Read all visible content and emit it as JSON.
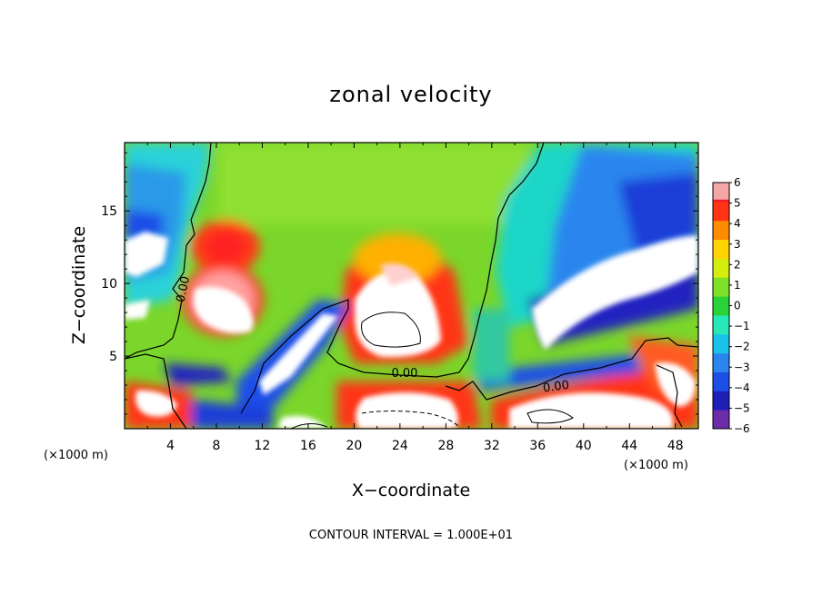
{
  "chart_data": {
    "type": "heatmap",
    "title": "zonal velocity",
    "xlabel": "X−coordinate",
    "ylabel": "Z−coordinate",
    "x_unit_left": "(×1000 m)",
    "x_unit_right": "(×1000 m)",
    "footer": "CONTOUR INTERVAL = 1.000E+01",
    "xlim": [
      0,
      50
    ],
    "ylim": [
      0,
      19.7
    ],
    "x_ticks": [
      4,
      8,
      12,
      16,
      20,
      24,
      28,
      32,
      36,
      40,
      44,
      48
    ],
    "y_ticks": [
      5,
      10,
      15
    ],
    "colorbar": {
      "min": -6,
      "max": 6,
      "ticks": [
        6,
        5,
        4,
        3,
        2,
        1,
        0,
        -1,
        -2,
        -3,
        -4,
        -5,
        -6
      ],
      "colors": [
        "#6a2ca8",
        "#2020b8",
        "#1e4ee8",
        "#2a86ee",
        "#18c2e8",
        "#28e8b8",
        "#2ad23a",
        "#7de026",
        "#d4ee10",
        "#ffd400",
        "#ff8c00",
        "#ff3414",
        "#ee1c24"
      ],
      "top_color": "#f4a6a6"
    },
    "contour_labels": [
      {
        "text": "0.00",
        "x": 5.1,
        "y": 9.6
      },
      {
        "text": "0.00",
        "x": 24.4,
        "y": 3.8
      },
      {
        "text": "0.00",
        "x": 37.6,
        "y": 2.9
      }
    ],
    "saturated_regions_note": "white = |u| beyond colorbar range"
  }
}
